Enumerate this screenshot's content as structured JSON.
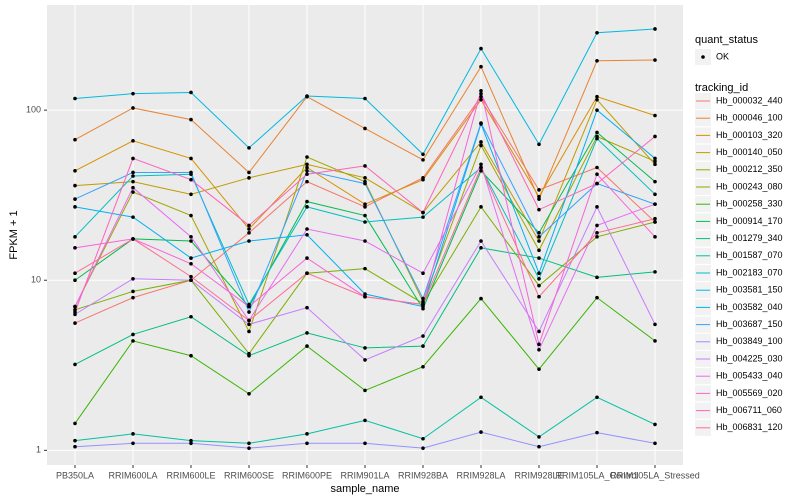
{
  "chart_data": {
    "type": "line",
    "x_label": "sample_name",
    "y_label": "FPKM + 1",
    "log_y": true,
    "grid": true,
    "shape_legend_title": "quant_status",
    "shape_legend_items": [
      "OK"
    ],
    "color_legend_title": "tracking_id",
    "legend_position": "right",
    "categories": [
      "PB350LA",
      "RRIM600LA",
      "RRIM600LE",
      "RRIM600SE",
      "RRIM600PE",
      "RRIM901LA",
      "RRIM928BA",
      "RRIM928LA",
      "RRIM928LE",
      "RRIM105LA_Control",
      "RRIM105LA_Stressed"
    ],
    "ylim": [
      0.82,
      415
    ],
    "yticks": [
      1,
      10,
      100
    ],
    "series": [
      {
        "name": "Hb_000032_440",
        "color": "#F8766D",
        "values": [
          5.6,
          7.9,
          10,
          19,
          38,
          27,
          40,
          120,
          34,
          46,
          22
        ]
      },
      {
        "name": "Hb_000046_100",
        "color": "#EA8331",
        "values": [
          67,
          103,
          88,
          43,
          120,
          78,
          51,
          180,
          30,
          195,
          197
        ]
      },
      {
        "name": "Hb_000103_320",
        "color": "#D89000",
        "values": [
          44,
          66,
          52,
          20,
          46,
          28,
          39,
          115,
          31,
          120,
          93
        ]
      },
      {
        "name": "Hb_000140_050",
        "color": "#C09B00",
        "values": [
          36,
          38,
          32,
          40,
          48,
          40,
          25,
          65,
          17,
          115,
          48
        ]
      },
      {
        "name": "Hb_000212_350",
        "color": "#A3A500",
        "values": [
          7,
          33,
          24,
          5,
          53,
          38,
          7.5,
          62,
          15,
          70,
          50
        ]
      },
      {
        "name": "Hb_000243_080",
        "color": "#7CAE00",
        "values": [
          6.7,
          8.6,
          10,
          3.7,
          11,
          11.7,
          7.3,
          27,
          9.3,
          18,
          22
        ]
      },
      {
        "name": "Hb_000258_330",
        "color": "#39B600",
        "values": [
          1.44,
          4.4,
          3.6,
          2.15,
          4.1,
          2.25,
          3.1,
          7.8,
          3.0,
          7.9,
          4.4
        ]
      },
      {
        "name": "Hb_000914_170",
        "color": "#00BB4E",
        "values": [
          10,
          17.5,
          17,
          7,
          29,
          24,
          6.8,
          44,
          19,
          74,
          38
        ]
      },
      {
        "name": "Hb_001279_340",
        "color": "#00BF7D",
        "values": [
          3.2,
          4.8,
          6.1,
          3.6,
          4.9,
          4.0,
          4.1,
          15.5,
          13.5,
          10.4,
          11.2
        ]
      },
      {
        "name": "Hb_001587_070",
        "color": "#00C1A3",
        "values": [
          1.14,
          1.25,
          1.14,
          1.1,
          1.25,
          1.5,
          1.17,
          2.05,
          1.2,
          2.05,
          1.42
        ]
      },
      {
        "name": "Hb_002183_070",
        "color": "#00BFC4",
        "values": [
          18,
          41,
          42,
          7.2,
          27,
          22,
          23.5,
          46,
          10.2,
          68,
          32
        ]
      },
      {
        "name": "Hb_003581_150",
        "color": "#00BAE0",
        "values": [
          117,
          125,
          127,
          60,
          121,
          117,
          55,
          230,
          63,
          285,
          300
        ]
      },
      {
        "name": "Hb_003582_040",
        "color": "#00B0F6",
        "values": [
          27,
          23.5,
          13.5,
          17,
          18.5,
          8.3,
          7,
          83,
          11,
          100,
          52
        ]
      },
      {
        "name": "Hb_003687_150",
        "color": "#35A2FF",
        "values": [
          30,
          43,
          43,
          6.5,
          44,
          37,
          7.8,
          84,
          18,
          37,
          28
        ]
      },
      {
        "name": "Hb_003849_100",
        "color": "#9590FF",
        "values": [
          1.05,
          1.1,
          1.1,
          1.03,
          1.1,
          1.1,
          1.03,
          1.28,
          1.05,
          1.27,
          1.1
        ]
      },
      {
        "name": "Hb_004225_030",
        "color": "#C77CFF",
        "values": [
          6.3,
          10.2,
          10,
          5.5,
          6.9,
          3.4,
          4.7,
          17,
          5,
          27,
          5.5
        ]
      },
      {
        "name": "Hb_005433_040",
        "color": "#E76BF3",
        "values": [
          7,
          35,
          18,
          5.8,
          20,
          17,
          11,
          48,
          3.9,
          21,
          28
        ]
      },
      {
        "name": "Hb_005569_020",
        "color": "#FA62DB",
        "values": [
          15.5,
          17.5,
          12.5,
          7,
          13.5,
          8,
          7.2,
          130,
          4.2,
          42,
          18
        ]
      },
      {
        "name": "Hb_006711_060",
        "color": "#FF62BC",
        "values": [
          6.5,
          52,
          39,
          21,
          42,
          47,
          25,
          125,
          26,
          37,
          70
        ]
      },
      {
        "name": "Hb_006831_120",
        "color": "#FF6C91",
        "values": [
          11,
          17.5,
          10.5,
          5.8,
          11,
          8,
          7.2,
          46,
          8,
          19,
          23
        ]
      }
    ]
  }
}
